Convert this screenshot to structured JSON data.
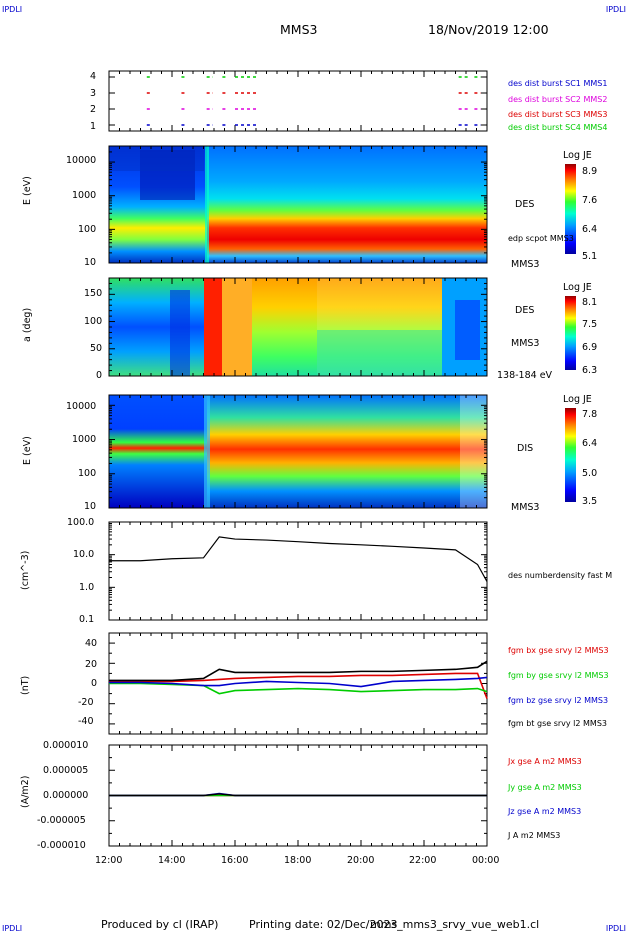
{
  "header": {
    "corner_left": "IPDLI",
    "corner_right": "IPDLI",
    "spacecraft": "MMS3",
    "datetime": "18/Nov/2019 12:00"
  },
  "footer": {
    "corner_left": "IPDLI",
    "corner_right": "IPDLI",
    "produced": "Produced by cl (IRAP)",
    "printing": "Printing date: 02/Dec/2023",
    "product": "mms_mms3_srvy_vue_web1.cl"
  },
  "colors": {
    "blue": "#0000cc",
    "magenta": "#dd00dd",
    "red": "#dd0000",
    "green": "#00cc00",
    "black": "#000000"
  },
  "chart_data": [
    {
      "panel": "burst",
      "type": "scatter",
      "yticks": [
        "1",
        "2",
        "3",
        "4"
      ],
      "xlabels": [
        "12:00",
        "14:00",
        "16:00",
        "18:00",
        "20:00",
        "22:00",
        "00:00"
      ],
      "legend": [
        {
          "text": "des dist burst SC1 MMS1",
          "color": "#0000cc",
          "level": 1
        },
        {
          "text": "des dist burst SC2 MMS2",
          "color": "#dd00dd",
          "level": 2
        },
        {
          "text": "des dist burst SC3 MMS3",
          "color": "#dd0000",
          "level": 3
        },
        {
          "text": "des dist burst SC4 MMS4",
          "color": "#00cc00",
          "level": 4
        }
      ],
      "intervals_hours": [
        [
          13.2,
          13.3
        ],
        [
          14.3,
          14.4
        ],
        [
          15.1,
          15.3
        ],
        [
          15.6,
          15.7
        ],
        [
          16.0,
          16.7
        ],
        [
          23.1,
          23.4
        ],
        [
          23.6,
          23.8
        ]
      ]
    },
    {
      "panel": "des-energy",
      "type": "heatmap",
      "ylabel": "E (eV)",
      "ylog": true,
      "ylim": [
        10,
        30000
      ],
      "yticks": [
        "10000",
        "1000",
        "100",
        "10"
      ],
      "colorbar": {
        "title": "Log JE",
        "ticks": [
          "8.9",
          "7.6",
          "6.4",
          "5.1"
        ],
        "range": [
          5.1,
          8.9
        ]
      },
      "side_labels": [
        "DES",
        "MMS3"
      ],
      "overlay_label": "edp scpot MMS3"
    },
    {
      "panel": "des-pitch",
      "type": "heatmap",
      "ylabel": "a (deg)",
      "ylim": [
        0,
        180
      ],
      "yticks": [
        "150",
        "100",
        "50",
        "0"
      ],
      "colorbar": {
        "title": "Log JE",
        "ticks": [
          "8.1",
          "7.5",
          "6.9",
          "6.3"
        ],
        "range": [
          6.3,
          8.1
        ]
      },
      "side_labels": [
        "DES",
        "MMS3",
        "138-184 eV"
      ]
    },
    {
      "panel": "dis-energy",
      "type": "heatmap",
      "ylabel": "E (eV)",
      "ylog": true,
      "ylim": [
        10,
        20000
      ],
      "yticks": [
        "10000",
        "1000",
        "100",
        "10"
      ],
      "colorbar": {
        "title": "Log JE",
        "ticks": [
          "7.8",
          "6.4",
          "5.0",
          "3.5"
        ],
        "range": [
          3.5,
          7.8
        ]
      },
      "side_labels": [
        "DIS",
        "MMS3"
      ]
    },
    {
      "panel": "density",
      "type": "line",
      "ylabel": "(cm^-3)",
      "ylog": true,
      "ylim": [
        0.1,
        100
      ],
      "yticks": [
        "100.0",
        "10.0",
        "1.0",
        "0.1"
      ],
      "legend": [
        {
          "text": "des numberdensity fast M",
          "color": "#000000"
        }
      ],
      "x_hours": [
        12.0,
        13.0,
        13.5,
        14.0,
        15.0,
        15.5,
        16.0,
        17.0,
        18.0,
        19.0,
        20.0,
        21.0,
        22.0,
        23.0,
        23.7,
        24.0
      ],
      "values": [
        6.5,
        6.5,
        7.0,
        7.5,
        8.0,
        35,
        30,
        28,
        25,
        22,
        20,
        18,
        16,
        14,
        5,
        1.5
      ]
    },
    {
      "panel": "magnetic-field",
      "type": "line",
      "ylabel": "(nT)",
      "ylim": [
        -50,
        50
      ],
      "yticks": [
        "40",
        "20",
        "0",
        "-20",
        "-40"
      ],
      "x_hours": [
        12.0,
        13.0,
        14.0,
        15.0,
        15.5,
        16.0,
        17.0,
        18.0,
        19.0,
        20.0,
        21.0,
        22.0,
        23.0,
        23.7,
        24.0
      ],
      "series": [
        {
          "name": "fgm bx gse srvy l2 MMS3",
          "color": "#dd0000",
          "values": [
            2,
            2,
            2,
            3,
            4,
            5,
            6,
            7,
            7,
            8,
            8,
            9,
            10,
            10,
            -15
          ]
        },
        {
          "name": "fgm by gse srvy l2 MMS3",
          "color": "#00cc00",
          "values": [
            0,
            0,
            -1,
            -2,
            -10,
            -7,
            -6,
            -5,
            -6,
            -8,
            -7,
            -6,
            -6,
            -5,
            -8
          ]
        },
        {
          "name": "fgm bz gse srvy l2 MMS3",
          "color": "#0000cc",
          "values": [
            1,
            1,
            0,
            -2,
            -2,
            0,
            2,
            1,
            0,
            -3,
            2,
            3,
            4,
            5,
            6
          ]
        },
        {
          "name": "fgm bt gse srvy l2 MMS3",
          "color": "#000000",
          "values": [
            3,
            3,
            3,
            5,
            14,
            11,
            11,
            11,
            11,
            12,
            12,
            13,
            14,
            16,
            22
          ]
        }
      ]
    },
    {
      "panel": "current-density",
      "type": "line",
      "ylabel": "(A/m2)",
      "ylim": [
        -0.0001,
        0.0001
      ],
      "yticks": [
        "0.000010",
        "0.000005",
        "0.000000",
        "-0.000005",
        "-0.000010"
      ],
      "x_hours": [
        12.0,
        15.0,
        15.5,
        16.0,
        24.0
      ],
      "series": [
        {
          "name": "Jx gse A m2 MMS3",
          "color": "#dd0000",
          "values": [
            0,
            0,
            0,
            0,
            0
          ]
        },
        {
          "name": "Jy gse A m2 MMS3",
          "color": "#00cc00",
          "values": [
            0,
            0,
            0,
            0,
            0
          ]
        },
        {
          "name": "Jz gse A m2 MMS3",
          "color": "#0000cc",
          "values": [
            0,
            0,
            4e-07,
            0,
            0
          ]
        },
        {
          "name": "J A m2 MMS3",
          "color": "#000000",
          "values": [
            0,
            0,
            3e-07,
            0,
            0
          ]
        }
      ]
    }
  ]
}
